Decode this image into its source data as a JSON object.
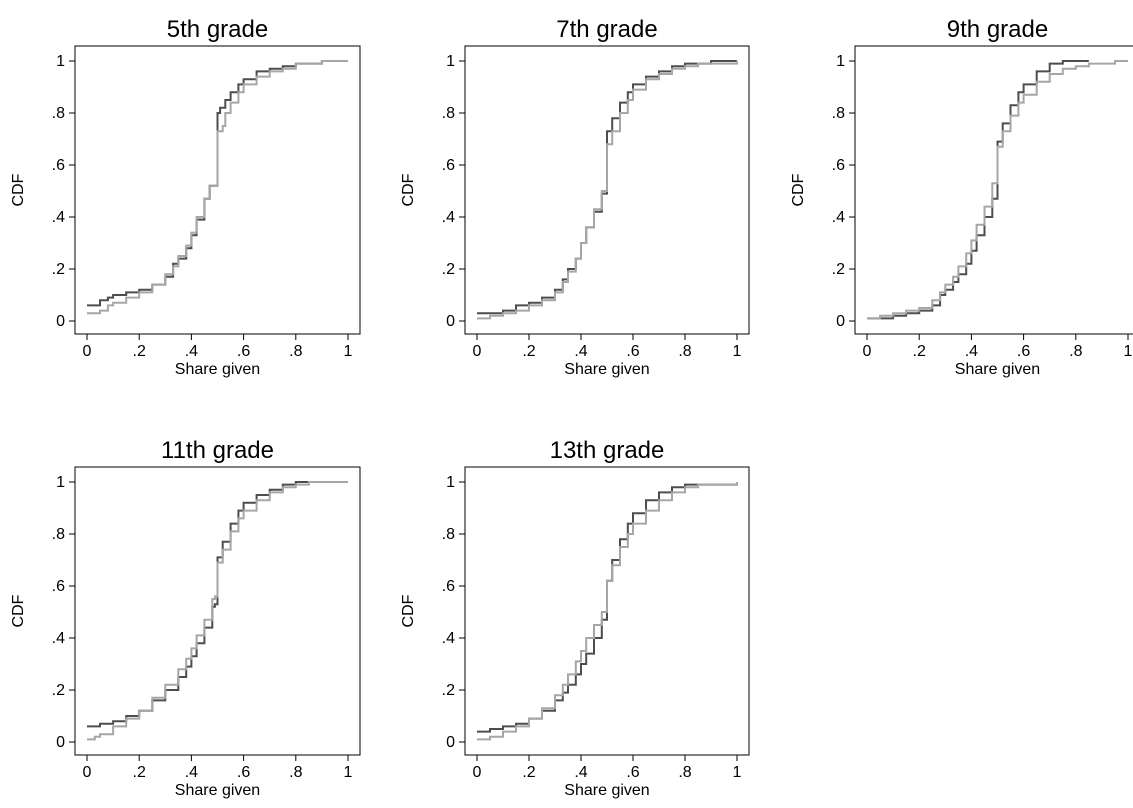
{
  "figure": {
    "y_tick_labels": [
      "0",
      ".2",
      ".4",
      ".6",
      ".8",
      "1"
    ],
    "x_tick_labels": [
      "0",
      ".2",
      ".4",
      ".6",
      ".8",
      "1"
    ],
    "colors": {
      "dark_series": "#4d4d4d",
      "light_series": "#a6a6a6",
      "frame": "#000000"
    }
  },
  "chart_data": [
    {
      "type": "line",
      "title": "5th grade",
      "xlabel": "Share given",
      "ylabel": "CDF",
      "xlim": [
        0,
        1
      ],
      "ylim": [
        0,
        1
      ],
      "grid": false,
      "series": [
        {
          "color": "#4d4d4d",
          "step": true,
          "x": [
            0,
            0.05,
            0.08,
            0.1,
            0.15,
            0.2,
            0.25,
            0.3,
            0.33,
            0.35,
            0.38,
            0.4,
            0.42,
            0.45,
            0.47,
            0.49,
            0.5,
            0.51,
            0.53,
            0.55,
            0.58,
            0.6,
            0.65,
            0.7,
            0.75,
            0.8,
            0.85,
            0.9,
            0.95,
            1.0
          ],
          "y": [
            0.06,
            0.08,
            0.09,
            0.1,
            0.11,
            0.12,
            0.14,
            0.17,
            0.22,
            0.24,
            0.28,
            0.33,
            0.39,
            0.47,
            0.52,
            0.52,
            0.8,
            0.82,
            0.85,
            0.88,
            0.91,
            0.93,
            0.96,
            0.97,
            0.98,
            0.99,
            0.99,
            1.0,
            1.0,
            1.0
          ]
        },
        {
          "color": "#a6a6a6",
          "step": true,
          "x": [
            0,
            0.05,
            0.08,
            0.1,
            0.15,
            0.2,
            0.25,
            0.3,
            0.33,
            0.35,
            0.38,
            0.4,
            0.42,
            0.45,
            0.47,
            0.49,
            0.5,
            0.52,
            0.53,
            0.55,
            0.58,
            0.6,
            0.65,
            0.7,
            0.75,
            0.8,
            0.85,
            0.9,
            0.95,
            1.0
          ],
          "y": [
            0.03,
            0.04,
            0.06,
            0.07,
            0.09,
            0.11,
            0.14,
            0.18,
            0.21,
            0.25,
            0.29,
            0.34,
            0.4,
            0.47,
            0.52,
            0.52,
            0.73,
            0.75,
            0.8,
            0.84,
            0.88,
            0.91,
            0.94,
            0.96,
            0.97,
            0.99,
            0.99,
            1.0,
            1.0,
            1.0
          ]
        }
      ]
    },
    {
      "type": "line",
      "title": "7th grade",
      "xlabel": "Share given",
      "ylabel": "CDF",
      "xlim": [
        0,
        1
      ],
      "ylim": [
        0,
        1
      ],
      "grid": false,
      "series": [
        {
          "color": "#4d4d4d",
          "step": true,
          "x": [
            0,
            0.05,
            0.1,
            0.15,
            0.2,
            0.25,
            0.3,
            0.33,
            0.35,
            0.38,
            0.4,
            0.42,
            0.45,
            0.48,
            0.49,
            0.5,
            0.52,
            0.55,
            0.58,
            0.6,
            0.65,
            0.7,
            0.75,
            0.8,
            0.85,
            0.9,
            0.95,
            1.0
          ],
          "y": [
            0.03,
            0.03,
            0.04,
            0.06,
            0.07,
            0.09,
            0.12,
            0.16,
            0.2,
            0.24,
            0.3,
            0.36,
            0.42,
            0.49,
            0.49,
            0.73,
            0.78,
            0.84,
            0.88,
            0.91,
            0.94,
            0.96,
            0.98,
            0.99,
            0.99,
            1.0,
            1.0,
            1.0
          ]
        },
        {
          "color": "#a6a6a6",
          "step": true,
          "x": [
            0,
            0.05,
            0.1,
            0.15,
            0.2,
            0.25,
            0.3,
            0.33,
            0.35,
            0.38,
            0.4,
            0.42,
            0.45,
            0.48,
            0.49,
            0.5,
            0.52,
            0.55,
            0.58,
            0.6,
            0.65,
            0.7,
            0.75,
            0.8,
            0.85,
            0.9,
            0.95,
            1.0
          ],
          "y": [
            0.01,
            0.02,
            0.03,
            0.04,
            0.06,
            0.08,
            0.11,
            0.15,
            0.19,
            0.24,
            0.3,
            0.36,
            0.43,
            0.5,
            0.5,
            0.68,
            0.73,
            0.8,
            0.85,
            0.89,
            0.93,
            0.95,
            0.97,
            0.98,
            0.99,
            0.99,
            0.99,
            1.0
          ]
        }
      ]
    },
    {
      "type": "line",
      "title": "9th grade",
      "xlabel": "Share given",
      "ylabel": "CDF",
      "xlim": [
        0,
        1
      ],
      "ylim": [
        0,
        1
      ],
      "grid": false,
      "series": [
        {
          "color": "#4d4d4d",
          "step": true,
          "x": [
            0,
            0.05,
            0.1,
            0.15,
            0.2,
            0.25,
            0.28,
            0.3,
            0.33,
            0.35,
            0.38,
            0.4,
            0.42,
            0.45,
            0.48,
            0.49,
            0.5,
            0.52,
            0.55,
            0.58,
            0.6,
            0.65,
            0.7,
            0.75,
            0.8,
            0.85
          ],
          "y": [
            0.01,
            0.01,
            0.02,
            0.03,
            0.04,
            0.06,
            0.1,
            0.12,
            0.15,
            0.18,
            0.22,
            0.27,
            0.33,
            0.4,
            0.47,
            0.47,
            0.69,
            0.76,
            0.83,
            0.88,
            0.91,
            0.96,
            0.99,
            1.0,
            1.0,
            1.0
          ]
        },
        {
          "color": "#a6a6a6",
          "step": true,
          "x": [
            0,
            0.05,
            0.1,
            0.15,
            0.2,
            0.25,
            0.28,
            0.3,
            0.33,
            0.35,
            0.38,
            0.4,
            0.42,
            0.45,
            0.48,
            0.49,
            0.5,
            0.52,
            0.55,
            0.58,
            0.6,
            0.65,
            0.7,
            0.75,
            0.8,
            0.85,
            0.9,
            0.95,
            1.0
          ],
          "y": [
            0.01,
            0.02,
            0.03,
            0.04,
            0.05,
            0.08,
            0.11,
            0.14,
            0.17,
            0.21,
            0.26,
            0.31,
            0.37,
            0.44,
            0.53,
            0.53,
            0.67,
            0.73,
            0.79,
            0.84,
            0.87,
            0.92,
            0.95,
            0.97,
            0.98,
            0.99,
            0.99,
            1.0,
            1.0
          ]
        }
      ]
    },
    {
      "type": "line",
      "title": "11th grade",
      "xlabel": "Share given",
      "ylabel": "CDF",
      "xlim": [
        0,
        1
      ],
      "ylim": [
        0,
        1
      ],
      "grid": false,
      "series": [
        {
          "color": "#4d4d4d",
          "step": true,
          "x": [
            0,
            0.05,
            0.08,
            0.1,
            0.15,
            0.2,
            0.25,
            0.3,
            0.35,
            0.38,
            0.4,
            0.42,
            0.45,
            0.48,
            0.49,
            0.5,
            0.52,
            0.55,
            0.58,
            0.6,
            0.65,
            0.7,
            0.75,
            0.8,
            0.85,
            0.9,
            0.95,
            1.0
          ],
          "y": [
            0.06,
            0.07,
            0.07,
            0.08,
            0.1,
            0.12,
            0.16,
            0.2,
            0.25,
            0.29,
            0.33,
            0.38,
            0.44,
            0.52,
            0.53,
            0.71,
            0.77,
            0.84,
            0.89,
            0.92,
            0.95,
            0.97,
            0.99,
            1.0,
            1.0,
            1.0,
            1.0,
            1.0
          ]
        },
        {
          "color": "#a6a6a6",
          "step": true,
          "x": [
            0,
            0.03,
            0.05,
            0.1,
            0.15,
            0.2,
            0.25,
            0.3,
            0.35,
            0.38,
            0.4,
            0.42,
            0.45,
            0.48,
            0.49,
            0.5,
            0.52,
            0.55,
            0.58,
            0.6,
            0.65,
            0.7,
            0.75,
            0.8,
            0.85,
            0.9,
            0.95,
            1.0
          ],
          "y": [
            0.01,
            0.02,
            0.03,
            0.06,
            0.09,
            0.12,
            0.17,
            0.22,
            0.28,
            0.32,
            0.36,
            0.41,
            0.47,
            0.55,
            0.56,
            0.69,
            0.74,
            0.81,
            0.86,
            0.89,
            0.93,
            0.96,
            0.98,
            0.99,
            1.0,
            1.0,
            1.0,
            1.0
          ]
        }
      ]
    },
    {
      "type": "line",
      "title": "13th grade",
      "xlabel": "Share given",
      "ylabel": "CDF",
      "xlim": [
        0,
        1
      ],
      "ylim": [
        0,
        1
      ],
      "grid": false,
      "series": [
        {
          "color": "#4d4d4d",
          "step": true,
          "x": [
            0,
            0.05,
            0.1,
            0.15,
            0.2,
            0.25,
            0.3,
            0.33,
            0.35,
            0.38,
            0.4,
            0.42,
            0.45,
            0.48,
            0.5,
            0.52,
            0.55,
            0.58,
            0.6,
            0.65,
            0.7,
            0.75,
            0.8,
            0.85,
            0.9,
            0.95,
            1.0
          ],
          "y": [
            0.04,
            0.05,
            0.06,
            0.07,
            0.09,
            0.12,
            0.16,
            0.19,
            0.22,
            0.26,
            0.3,
            0.34,
            0.4,
            0.47,
            0.62,
            0.7,
            0.78,
            0.84,
            0.88,
            0.93,
            0.96,
            0.98,
            0.99,
            0.99,
            0.99,
            0.99,
            1.0
          ]
        },
        {
          "color": "#a6a6a6",
          "step": true,
          "x": [
            0,
            0.05,
            0.1,
            0.15,
            0.2,
            0.25,
            0.3,
            0.33,
            0.35,
            0.38,
            0.4,
            0.42,
            0.45,
            0.48,
            0.49,
            0.5,
            0.52,
            0.55,
            0.58,
            0.6,
            0.65,
            0.7,
            0.75,
            0.8,
            0.85,
            0.9,
            0.95,
            1.0
          ],
          "y": [
            0.01,
            0.02,
            0.04,
            0.06,
            0.09,
            0.13,
            0.18,
            0.22,
            0.26,
            0.31,
            0.35,
            0.4,
            0.45,
            0.5,
            0.5,
            0.62,
            0.68,
            0.75,
            0.8,
            0.84,
            0.89,
            0.93,
            0.96,
            0.98,
            0.99,
            0.99,
            0.99,
            1.0
          ]
        }
      ]
    }
  ]
}
